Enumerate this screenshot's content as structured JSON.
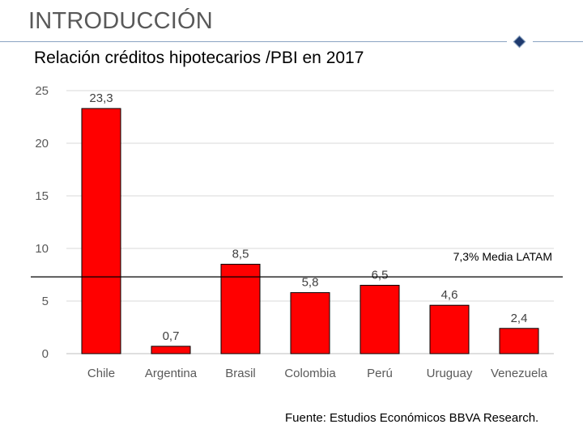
{
  "slide": {
    "title": "INTRODUCCIÓN",
    "source": "Fuente: Estudios Económicos BBVA Research."
  },
  "colors": {
    "bar": "#ff0000",
    "bar_edge": "#000000",
    "grid": "#d9d9d9",
    "rule": "#8aa3c2",
    "diamond": "#1f3a6e"
  },
  "chart_data": {
    "type": "bar",
    "title": "Relación créditos hipotecarios /PBI en 2017",
    "xlabel": "",
    "ylabel": "",
    "categories": [
      "Chile",
      "Argentina",
      "Brasil",
      "Colombia",
      "Perú",
      "Uruguay",
      "Venezuela"
    ],
    "values": [
      23.3,
      0.7,
      8.5,
      5.8,
      6.5,
      4.6,
      2.4
    ],
    "data_labels": [
      "23,3",
      "0,7",
      "8,5",
      "5,8",
      "6,5",
      "4,6",
      "2,4"
    ],
    "ylim": [
      0,
      25
    ],
    "yticks": [
      0,
      5,
      10,
      15,
      20,
      25
    ],
    "grid": true,
    "legend": "none",
    "reference_line": {
      "value": 7.3,
      "label": "7,3% Media LATAM"
    }
  }
}
